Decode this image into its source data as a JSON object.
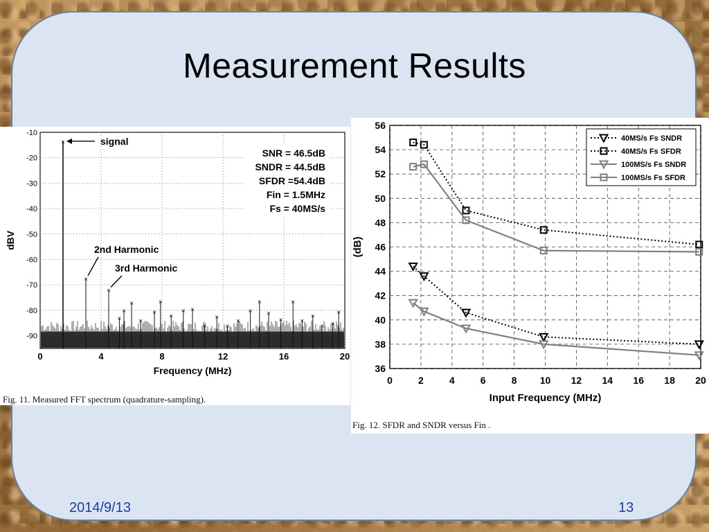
{
  "slide": {
    "title": "Measurement Results",
    "date": "2014/9/13",
    "page": "13"
  },
  "fig11": {
    "caption": "Fig. 11.   Measured FFT spectrum (quadrature-sampling).",
    "annotations": {
      "signal": "signal",
      "second": "2nd Harmonic",
      "third": "3rd Harmonic"
    },
    "stats": [
      "SNR = 46.5dB",
      "SNDR = 44.5dB",
      "SFDR =54.4dB",
      "Fin = 1.5MHz",
      "Fs = 40MS/s"
    ]
  },
  "fig12": {
    "caption": "Fig. 12.   SFDR and SNDR versus Fin ."
  },
  "chart_data": [
    {
      "type": "bar",
      "xlabel": "Frequency (MHz)",
      "ylabel": "dBV",
      "xlim": [
        0,
        20
      ],
      "ylim": [
        -95,
        -10
      ],
      "xticks": [
        0,
        4,
        8,
        12,
        16,
        20
      ],
      "yticks": [
        -10,
        -20,
        -30,
        -40,
        -50,
        -60,
        -70,
        -80,
        -90
      ],
      "grid": true,
      "spurs": [
        {
          "x": 1.5,
          "y": -13.5,
          "label": "signal"
        },
        {
          "x": 3.0,
          "y": -67.5,
          "label": "2nd Harmonic"
        },
        {
          "x": 4.5,
          "y": -72.0,
          "label": "3rd Harmonic"
        },
        {
          "x": 5.2,
          "y": -83.0
        },
        {
          "x": 5.5,
          "y": -80.0
        },
        {
          "x": 6.0,
          "y": -77.0
        },
        {
          "x": 6.6,
          "y": -84.0
        },
        {
          "x": 7.5,
          "y": -80.5
        },
        {
          "x": 7.9,
          "y": -76.5
        },
        {
          "x": 8.6,
          "y": -82.0
        },
        {
          "x": 9.4,
          "y": -80.0
        },
        {
          "x": 10.0,
          "y": -79.5
        },
        {
          "x": 10.8,
          "y": -86.0
        },
        {
          "x": 11.6,
          "y": -82.5
        },
        {
          "x": 12.3,
          "y": -86.0
        },
        {
          "x": 13.0,
          "y": -84.0
        },
        {
          "x": 13.8,
          "y": -80.0
        },
        {
          "x": 14.4,
          "y": -76.5
        },
        {
          "x": 15.0,
          "y": -81.0
        },
        {
          "x": 15.8,
          "y": -83.5
        },
        {
          "x": 16.6,
          "y": -76.5
        },
        {
          "x": 17.2,
          "y": -84.0
        },
        {
          "x": 17.9,
          "y": -82.0
        },
        {
          "x": 18.5,
          "y": -86.0
        },
        {
          "x": 19.2,
          "y": -85.0
        },
        {
          "x": 19.6,
          "y": -80.5
        }
      ],
      "noise_floor": -90
    },
    {
      "type": "line",
      "xlabel": "Input Frequency (MHz)",
      "ylabel": "(dB)",
      "xlim": [
        0,
        20
      ],
      "ylim": [
        36,
        56
      ],
      "xticks": [
        0,
        2,
        4,
        6,
        8,
        10,
        12,
        14,
        16,
        18,
        20
      ],
      "yticks": [
        36,
        38,
        40,
        42,
        44,
        46,
        48,
        50,
        52,
        54,
        56
      ],
      "grid": true,
      "legend": "top-right",
      "series": [
        {
          "name": "40MS/s Fs SNDR",
          "x": [
            1.5,
            2.2,
            4.9,
            9.9,
            19.9
          ],
          "y": [
            44.4,
            43.6,
            40.6,
            38.6,
            38.0
          ],
          "color": "#000000",
          "dash": "dotted",
          "marker": "triangle-down"
        },
        {
          "name": "40MS/s Fs SFDR",
          "x": [
            1.5,
            2.2,
            4.9,
            9.9,
            19.9
          ],
          "y": [
            54.6,
            54.4,
            49.0,
            47.4,
            46.2
          ],
          "color": "#000000",
          "dash": "dotted",
          "marker": "square"
        },
        {
          "name": "100MS/s Fs SNDR",
          "x": [
            1.5,
            2.2,
            4.9,
            9.9,
            19.9
          ],
          "y": [
            41.4,
            40.7,
            39.3,
            38.0,
            37.1
          ],
          "color": "#7f7f7f",
          "dash": "solid",
          "marker": "triangle-down"
        },
        {
          "name": "100MS/s Fs SFDR",
          "x": [
            1.5,
            2.2,
            4.9,
            9.9,
            19.9
          ],
          "y": [
            52.6,
            52.8,
            48.2,
            45.7,
            45.6
          ],
          "color": "#7f7f7f",
          "dash": "solid",
          "marker": "square"
        }
      ]
    }
  ]
}
